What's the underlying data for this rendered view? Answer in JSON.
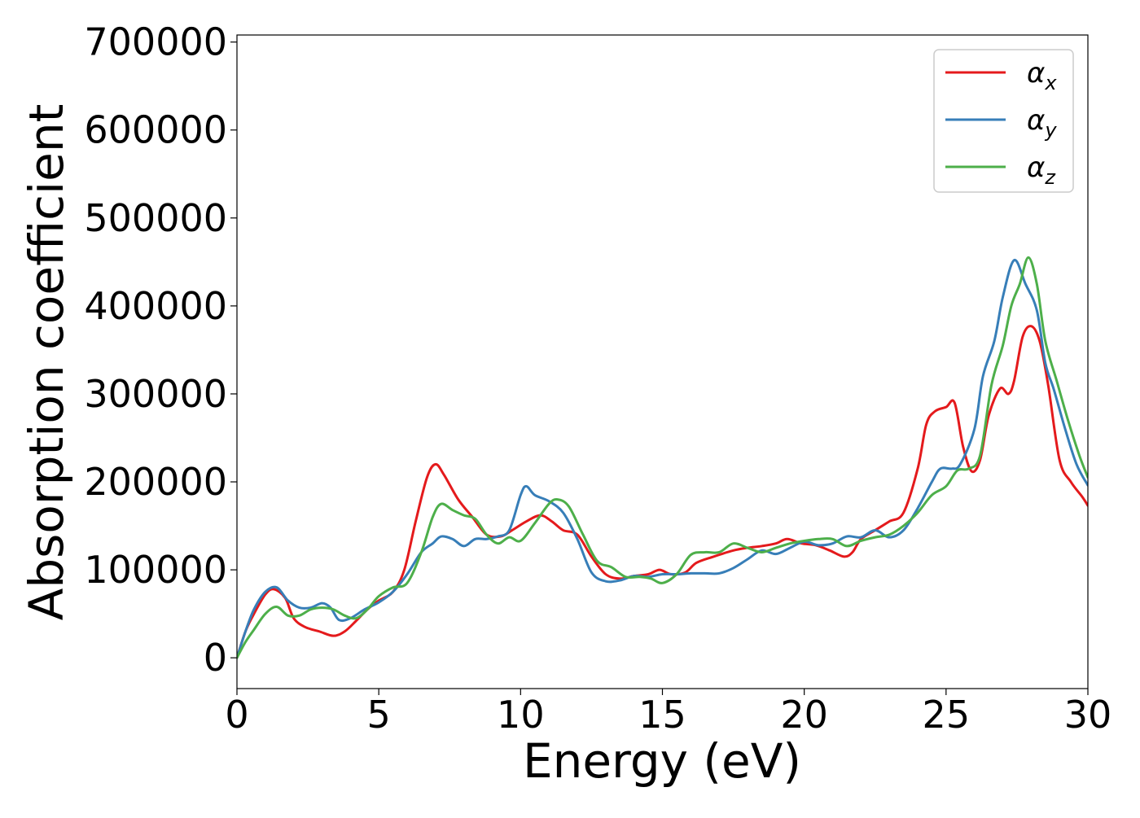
{
  "chart_data": {
    "type": "line",
    "xlabel": "Energy (eV)",
    "ylabel": "Absorption coefficient",
    "xlim": [
      0,
      30
    ],
    "ylim": [
      -35000,
      708000
    ],
    "xticks": [
      0,
      5,
      10,
      15,
      20,
      25,
      30
    ],
    "xtick_labels": [
      "0",
      "5",
      "10",
      "15",
      "20",
      "25",
      "30"
    ],
    "yticks": [
      0,
      100000,
      200000,
      300000,
      400000,
      500000,
      600000,
      700000
    ],
    "ytick_labels": [
      "0",
      "100000",
      "200000",
      "300000",
      "400000",
      "500000",
      "600000",
      "700000"
    ],
    "grid": false,
    "legend_position": "top-right",
    "series": [
      {
        "name": "αx",
        "legend_base": "α",
        "legend_sub": "x",
        "color": "#e41a1c",
        "x": [
          0,
          0.3,
          0.6,
          1.0,
          1.3,
          1.7,
          2.0,
          2.4,
          2.9,
          3.4,
          3.8,
          4.2,
          4.6,
          5.0,
          5.5,
          5.9,
          6.3,
          6.7,
          7.0,
          7.3,
          7.8,
          8.3,
          8.8,
          9.3,
          9.7,
          10.2,
          10.7,
          11.1,
          11.5,
          12.0,
          12.5,
          13.0,
          13.5,
          14.0,
          14.5,
          14.9,
          15.3,
          15.8,
          16.2,
          16.8,
          17.5,
          18.0,
          18.5,
          19.0,
          19.4,
          19.9,
          20.4,
          20.9,
          21.4,
          21.7,
          22.0,
          22.5,
          23.0,
          23.5,
          24.0,
          24.3,
          24.6,
          25.0,
          25.3,
          25.6,
          25.9,
          26.2,
          26.5,
          26.9,
          27.2,
          27.4,
          27.7,
          28.0,
          28.3,
          28.6,
          29.0,
          29.4,
          29.8,
          30.0
        ],
        "y": [
          0,
          30000,
          50000,
          72000,
          78000,
          68000,
          45000,
          35000,
          30000,
          25000,
          30000,
          42000,
          55000,
          65000,
          75000,
          100000,
          155000,
          205000,
          220000,
          208000,
          180000,
          160000,
          140000,
          138000,
          145000,
          155000,
          162000,
          155000,
          145000,
          140000,
          115000,
          95000,
          90000,
          93000,
          95000,
          100000,
          95000,
          97000,
          108000,
          115000,
          122000,
          125000,
          127000,
          130000,
          135000,
          130000,
          128000,
          122000,
          115000,
          120000,
          135000,
          145000,
          155000,
          165000,
          215000,
          265000,
          280000,
          285000,
          290000,
          240000,
          212000,
          225000,
          275000,
          306000,
          300000,
          315000,
          365000,
          377000,
          360000,
          310000,
          225000,
          200000,
          183000,
          173000
        ]
      },
      {
        "name": "αy",
        "legend_base": "α",
        "legend_sub": "y",
        "color": "#377eb8",
        "x": [
          0,
          0.3,
          0.6,
          1.0,
          1.4,
          1.8,
          2.2,
          2.6,
          3.0,
          3.3,
          3.6,
          4.0,
          4.5,
          5.0,
          5.5,
          6.0,
          6.5,
          6.9,
          7.2,
          7.6,
          8.0,
          8.4,
          8.8,
          9.2,
          9.6,
          10.0,
          10.2,
          10.5,
          11.0,
          11.5,
          12.0,
          12.5,
          13.0,
          13.5,
          14.0,
          14.5,
          15.0,
          15.5,
          16.0,
          16.5,
          17.0,
          17.5,
          18.0,
          18.5,
          19.0,
          19.5,
          20.0,
          20.5,
          21.0,
          21.5,
          22.0,
          22.5,
          23.0,
          23.5,
          24.0,
          24.5,
          24.8,
          25.2,
          25.5,
          26.0,
          26.3,
          26.7,
          27.0,
          27.4,
          27.8,
          28.2,
          28.5,
          28.8,
          29.2,
          29.6,
          30.0
        ],
        "y": [
          0,
          30000,
          55000,
          75000,
          80000,
          65000,
          57000,
          57000,
          62000,
          57000,
          43000,
          45000,
          55000,
          63000,
          75000,
          95000,
          120000,
          130000,
          138000,
          135000,
          127000,
          135000,
          135000,
          138000,
          145000,
          185000,
          195000,
          185000,
          178000,
          165000,
          135000,
          97000,
          87000,
          88000,
          93000,
          92000,
          95000,
          95000,
          96000,
          96000,
          96000,
          102000,
          112000,
          122000,
          118000,
          125000,
          132000,
          128000,
          130000,
          138000,
          137000,
          145000,
          137000,
          145000,
          170000,
          200000,
          215000,
          215000,
          220000,
          260000,
          320000,
          360000,
          410000,
          452000,
          425000,
          395000,
          335000,
          305000,
          260000,
          220000,
          196000
        ]
      },
      {
        "name": "αz",
        "legend_base": "α",
        "legend_sub": "z",
        "color": "#4daf4a",
        "x": [
          0,
          0.3,
          0.6,
          1.0,
          1.4,
          1.8,
          2.2,
          2.6,
          3.0,
          3.4,
          3.8,
          4.2,
          4.6,
          5.0,
          5.5,
          6.0,
          6.5,
          6.9,
          7.2,
          7.6,
          8.0,
          8.4,
          8.8,
          9.2,
          9.6,
          10.0,
          10.5,
          11.0,
          11.3,
          11.7,
          12.2,
          12.7,
          13.2,
          13.7,
          14.2,
          14.6,
          15.0,
          15.5,
          16.0,
          16.5,
          17.0,
          17.5,
          18.0,
          18.5,
          19.0,
          19.5,
          20.0,
          20.5,
          21.0,
          21.5,
          22.0,
          22.5,
          23.0,
          23.5,
          24.0,
          24.5,
          25.0,
          25.4,
          25.8,
          26.2,
          26.6,
          27.0,
          27.3,
          27.6,
          27.9,
          28.2,
          28.5,
          28.9,
          29.3,
          29.7,
          30.0
        ],
        "y": [
          0,
          18000,
          32000,
          50000,
          58000,
          48000,
          48000,
          55000,
          57000,
          55000,
          48000,
          45000,
          55000,
          70000,
          80000,
          85000,
          120000,
          160000,
          175000,
          168000,
          162000,
          158000,
          140000,
          130000,
          137000,
          133000,
          153000,
          175000,
          180000,
          172000,
          140000,
          110000,
          103000,
          92000,
          92000,
          90000,
          85000,
          95000,
          117000,
          120000,
          120000,
          130000,
          125000,
          120000,
          125000,
          130000,
          133000,
          135000,
          135000,
          127000,
          133000,
          137000,
          140000,
          150000,
          165000,
          185000,
          195000,
          213000,
          215000,
          230000,
          310000,
          355000,
          400000,
          425000,
          455000,
          425000,
          360000,
          315000,
          270000,
          230000,
          205000
        ]
      }
    ]
  }
}
